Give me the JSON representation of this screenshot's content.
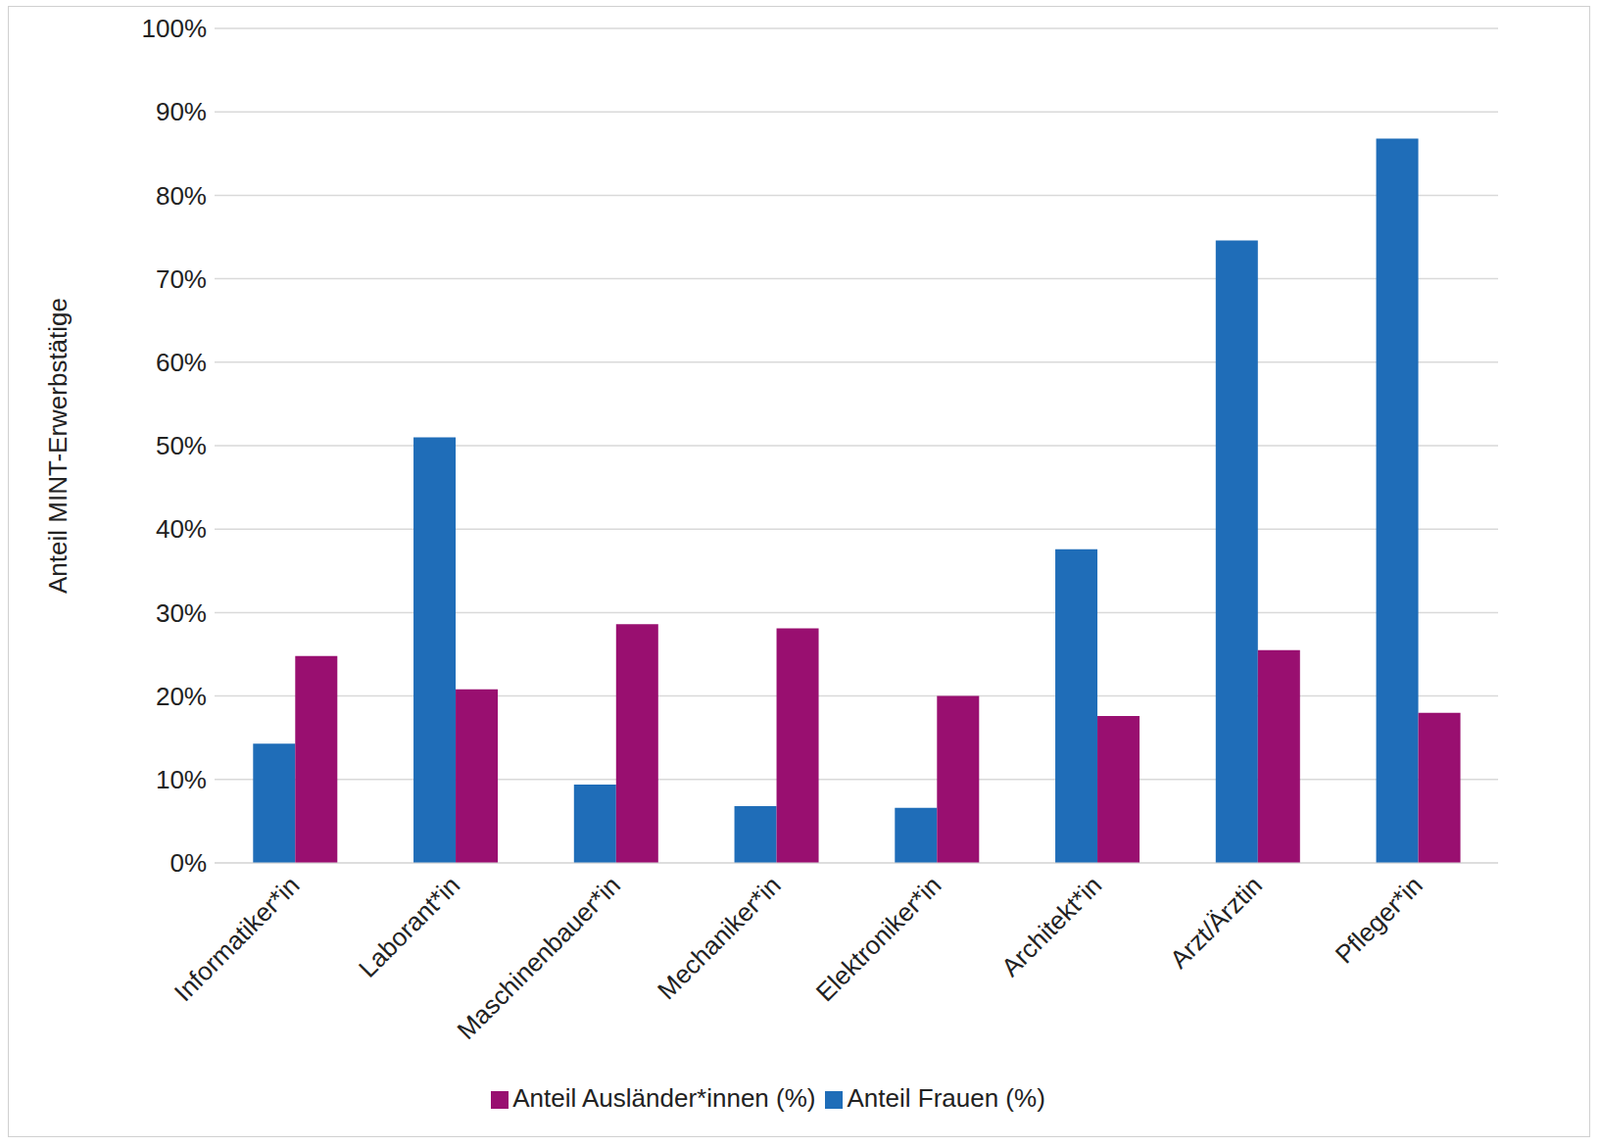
{
  "chart_data": {
    "type": "bar",
    "y_label": "Anteil MINT-Erwerbstätige",
    "categories": [
      "Informatiker*in",
      "Laborant*in",
      "Maschinenbauer*in",
      "Mechaniker*in",
      "Elektroniker*in",
      "Architekt*in",
      "Arzt/Ärztin",
      "Pfleger*in"
    ],
    "series": [
      {
        "name": "Anteil Frauen (%)",
        "color": "#1f6db8",
        "values": [
          14.3,
          51.0,
          9.4,
          6.8,
          6.6,
          37.6,
          74.6,
          86.8
        ]
      },
      {
        "name": "Anteil Ausländer*innen (%)",
        "color": "#990f70",
        "values": [
          24.8,
          20.8,
          28.6,
          28.1,
          20.0,
          17.6,
          25.5,
          18.0
        ]
      }
    ],
    "ylim": [
      0,
      100
    ],
    "yticks": [
      {
        "value": 0,
        "label": "0%"
      },
      {
        "value": 10,
        "label": "10%"
      },
      {
        "value": 20,
        "label": "20%"
      },
      {
        "value": 30,
        "label": "30%"
      },
      {
        "value": 40,
        "label": "40%"
      },
      {
        "value": 50,
        "label": "50%"
      },
      {
        "value": 60,
        "label": "60%"
      },
      {
        "value": 70,
        "label": "70%"
      },
      {
        "value": 80,
        "label": "80%"
      },
      {
        "value": 90,
        "label": "90%"
      },
      {
        "value": 100,
        "label": "100%"
      }
    ],
    "grid": true,
    "legend": "bottom"
  }
}
